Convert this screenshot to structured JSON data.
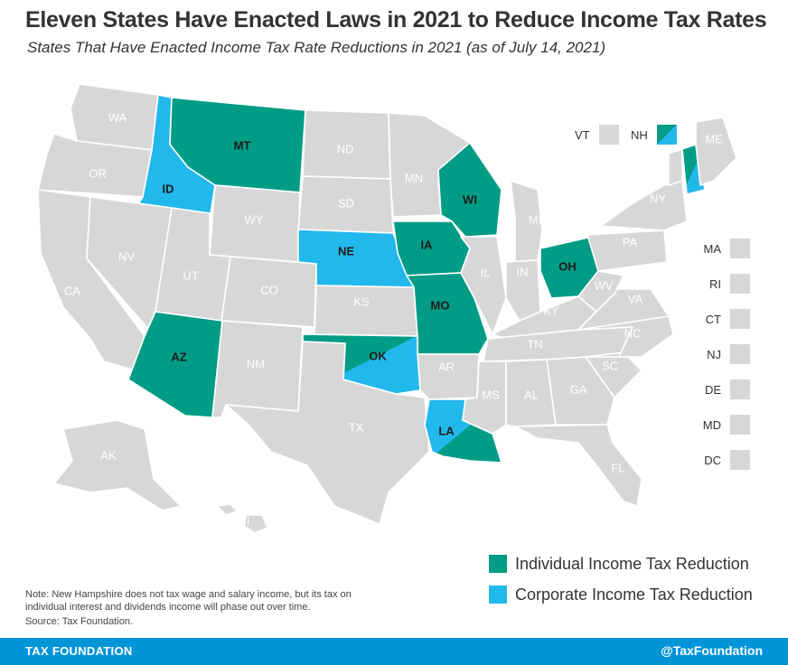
{
  "title": "Eleven States Have Enacted Laws in 2021 to Reduce Income Tax Rates",
  "subtitle": "States That Have Enacted Income Tax Rate Reductions in 2021 (as of July 14, 2021)",
  "colors": {
    "individual": "#009c86",
    "corporate": "#22b8ec",
    "none": "#d7d7d7"
  },
  "states": {
    "WA": "none",
    "OR": "none",
    "CA": "none",
    "ID": "corporate",
    "NV": "none",
    "MT": "individual",
    "WY": "none",
    "UT": "none",
    "AZ": "individual",
    "CO": "none",
    "NM": "none",
    "ND": "none",
    "SD": "none",
    "NE": "corporate",
    "KS": "none",
    "OK": "both",
    "TX": "none",
    "MN": "none",
    "IA": "individual",
    "MO": "individual",
    "AR": "none",
    "LA": "both",
    "WI": "individual",
    "IL": "none",
    "MI": "none",
    "IN": "none",
    "OH": "individual",
    "KY": "none",
    "TN": "none",
    "MS": "none",
    "AL": "none",
    "GA": "none",
    "FL": "none",
    "SC": "none",
    "NC": "none",
    "VA": "none",
    "WV": "none",
    "PA": "none",
    "NY": "none",
    "ME": "none",
    "NH": "both",
    "VT": "none",
    "AK": "none",
    "HI": "none"
  },
  "small_states": [
    "MA",
    "RI",
    "CT",
    "NJ",
    "DE",
    "MD",
    "DC"
  ],
  "top_small": [
    {
      "abbr": "VT",
      "status": "none"
    },
    {
      "abbr": "NH",
      "status": "both"
    }
  ],
  "legend": [
    {
      "label": "Individual Income Tax Reduction",
      "status": "individual"
    },
    {
      "label": "Corporate Income Tax Reduction",
      "status": "corporate"
    }
  ],
  "note": "Note: New Hampshire does not tax wage and salary income, but its tax on individual interest and dividends income will phase out over time.",
  "source": "Source: Tax Foundation.",
  "footer": {
    "left": "TAX FOUNDATION",
    "right": "@TaxFoundation"
  }
}
